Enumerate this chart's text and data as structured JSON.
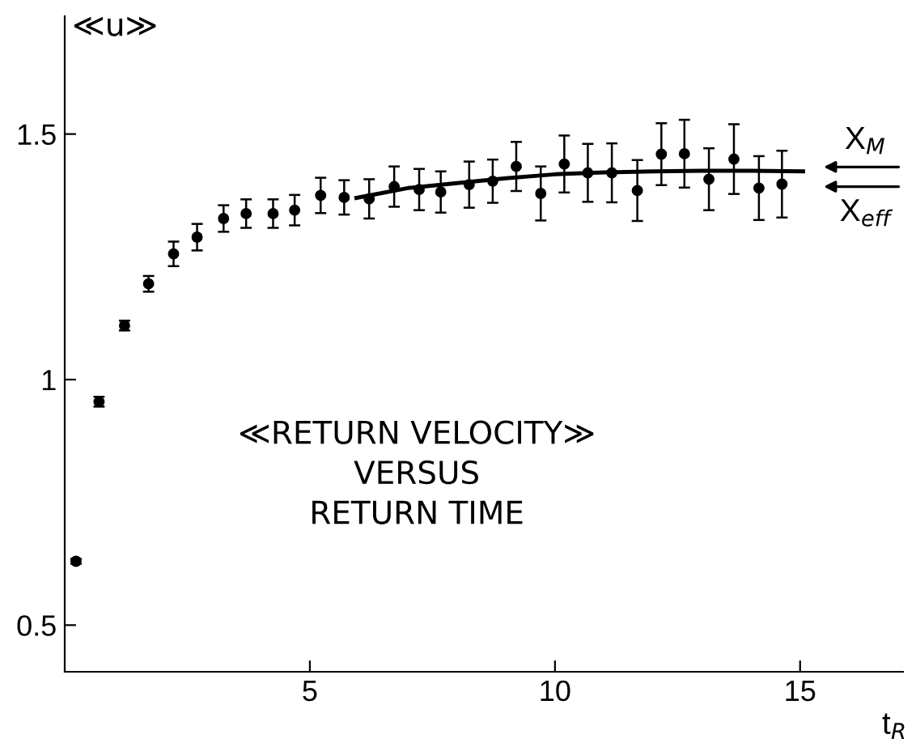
{
  "chart_data": {
    "type": "scatter",
    "ylabel": "≪u≫",
    "xlabel": "t$_{R}$",
    "xlim": [
      0,
      17.1
    ],
    "ylim": [
      0.405,
      1.74
    ],
    "xticks": [
      5,
      10,
      15
    ],
    "yticks": [
      0.5,
      1,
      1.5
    ],
    "grid": false,
    "series": [
      {
        "color": "#000000",
        "marker": "circle",
        "x": [
          0.23,
          0.7,
          1.22,
          1.71,
          2.22,
          2.7,
          3.24,
          3.7,
          4.25,
          4.69,
          5.22,
          5.7,
          6.21,
          6.72,
          7.23,
          7.67,
          8.25,
          8.73,
          9.21,
          9.71,
          10.19,
          10.67,
          11.16,
          11.68,
          12.17,
          12.64,
          13.14,
          13.65,
          14.16,
          14.63
        ],
        "values": [
          0.63,
          0.955,
          1.11,
          1.195,
          1.256,
          1.29,
          1.328,
          1.338,
          1.338,
          1.345,
          1.375,
          1.371,
          1.368,
          1.393,
          1.387,
          1.382,
          1.397,
          1.404,
          1.434,
          1.379,
          1.439,
          1.421,
          1.421,
          1.385,
          1.459,
          1.46,
          1.408,
          1.449,
          1.39,
          1.398
        ],
        "errors": [
          0.005,
          0.01,
          0.01,
          0.016,
          0.025,
          0.027,
          0.027,
          0.029,
          0.029,
          0.031,
          0.036,
          0.035,
          0.04,
          0.041,
          0.042,
          0.042,
          0.047,
          0.044,
          0.05,
          0.055,
          0.058,
          0.059,
          0.06,
          0.062,
          0.063,
          0.069,
          0.063,
          0.071,
          0.065,
          0.068
        ]
      },
      {
        "type": "line",
        "color": "#000000",
        "marker": "none",
        "line_style": "solid",
        "x": [
          5.95,
          7,
          8,
          9,
          10,
          11,
          12,
          13,
          14,
          15.06
        ],
        "values": [
          1.37,
          1.39,
          1.4,
          1.41,
          1.418,
          1.422,
          1.424,
          1.425,
          1.425,
          1.424
        ]
      }
    ],
    "annotations": [
      "X$_{M}$",
      "X$_{eff}$",
      "≪RETURN VELOCITY≫\nVERSUS\nRETURN TIME"
    ]
  }
}
